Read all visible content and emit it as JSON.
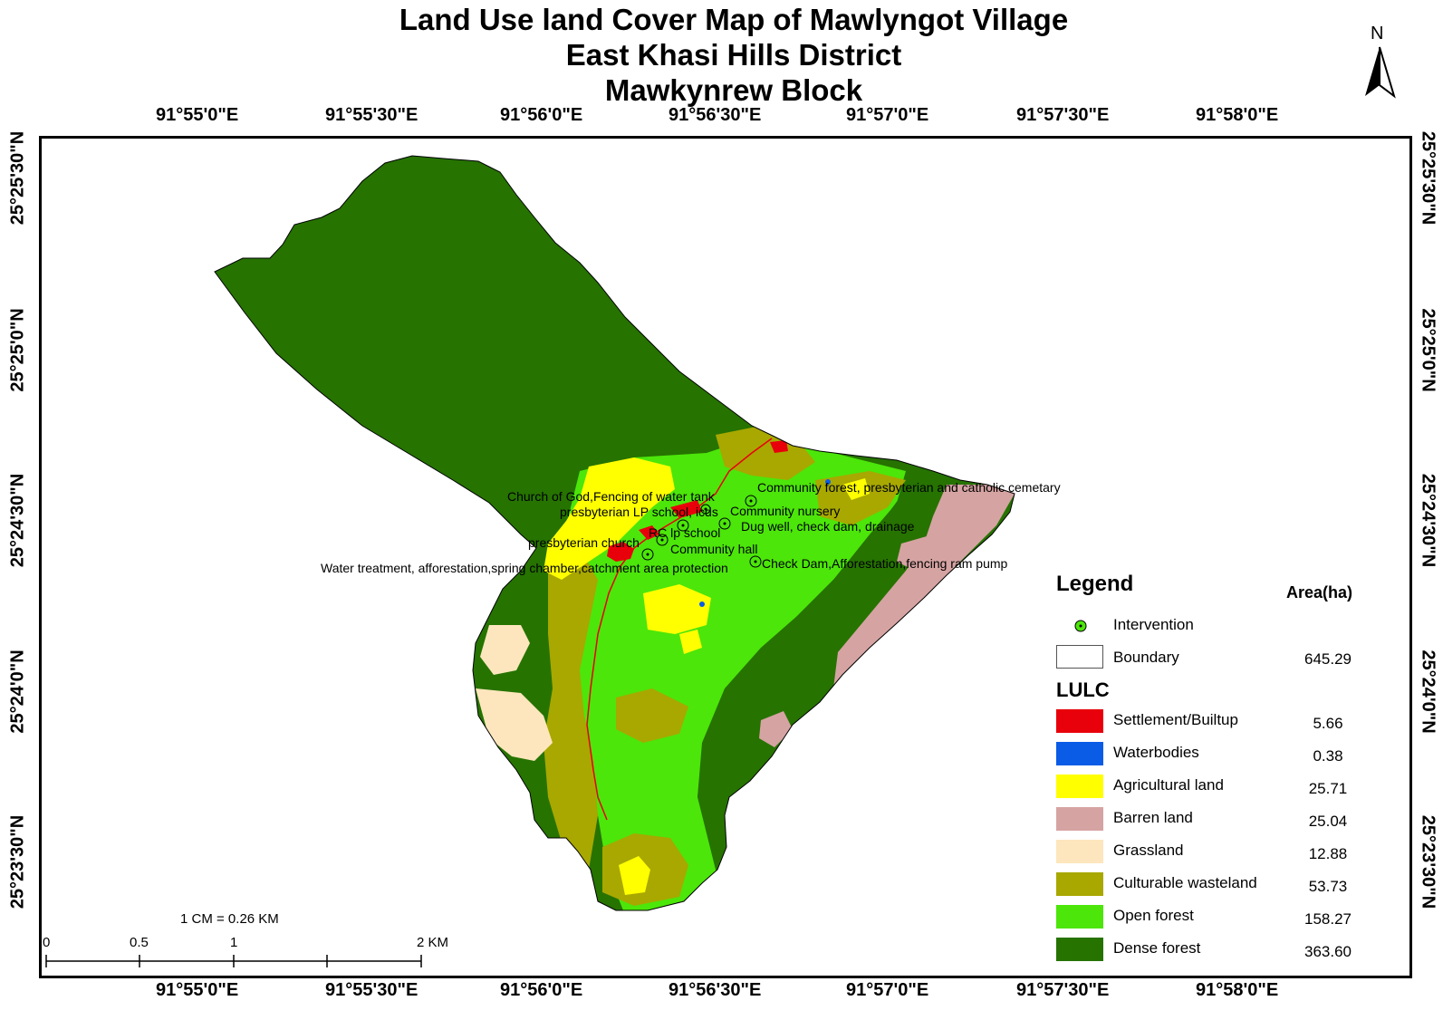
{
  "map": {
    "title_lines": [
      "Land Use land Cover Map of Mawlyngot Village",
      "East Khasi Hills District",
      "Mawkynrew Block"
    ],
    "north_arrow_label": "N",
    "longitude_labels": [
      "91°55'0\"E",
      "91°55'30\"E",
      "91°56'0\"E",
      "91°56'30\"E",
      "91°57'0\"E",
      "91°57'30\"E",
      "91°58'0\"E"
    ],
    "latitude_labels": [
      "25°25'30\"N",
      "25°25'0\"N",
      "25°24'30\"N",
      "25°24'0\"N",
      "25°23'30\"N"
    ],
    "intervention_labels": [
      "Community forest, presbyterian and catholic cemetary",
      "Church of God,Fencing of water tank",
      "presbyterian LP school, icds",
      "Community nursery",
      "Dug well, check dam, drainage",
      "RC lp school",
      "presbyterian church",
      "Community hall",
      "Check Dam,Afforestation,fencing ram pump",
      "Water treatment, afforestation,spring chamber,catchment area protection"
    ]
  },
  "legend": {
    "title": "Legend",
    "area_header": "Area(ha)",
    "intervention_label": "Intervention",
    "boundary_label": "Boundary",
    "boundary_area": "645.29",
    "lulc_title": "LULC",
    "classes": [
      {
        "label": "Settlement/Builtup",
        "area": "5.66",
        "color": "#e8000b"
      },
      {
        "label": "Waterbodies",
        "area": "0.38",
        "color": "#0a5ce6"
      },
      {
        "label": "Agricultural land",
        "area": "25.71",
        "color": "#ffff00"
      },
      {
        "label": "Barren land",
        "area": "25.04",
        "color": "#d6a3a3"
      },
      {
        "label": "Grassland",
        "area": "12.88",
        "color": "#fde6bd"
      },
      {
        "label": "Culturable wasteland",
        "area": "53.73",
        "color": "#a8a800"
      },
      {
        "label": "Open forest",
        "area": "158.27",
        "color": "#4ce60a"
      },
      {
        "label": "Dense forest",
        "area": "363.60",
        "color": "#267300"
      }
    ]
  },
  "scale": {
    "ratio_text": "1 CM = 0.26 KM",
    "ticks": [
      "0",
      "0.5",
      "1",
      "2 KM"
    ]
  }
}
